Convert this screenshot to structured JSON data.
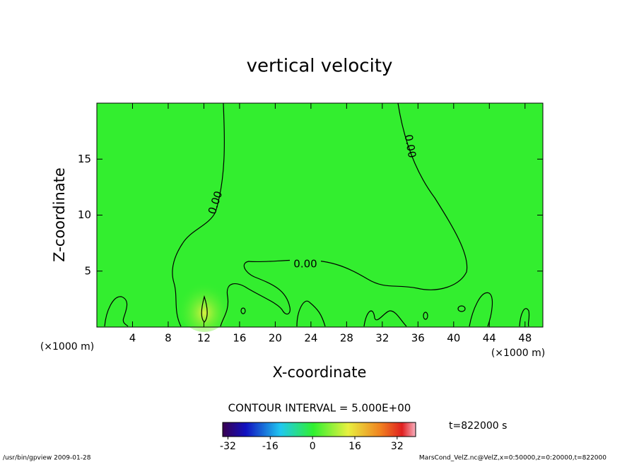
{
  "chart_data": {
    "type": "contour",
    "title": "vertical velocity",
    "x_label": "X-coordinate",
    "y_label": "Z-coordinate",
    "x_unit": "(×1000 m)",
    "xlim": [
      0,
      50
    ],
    "xticks": [
      4,
      8,
      12,
      16,
      20,
      24,
      28,
      32,
      36,
      40,
      44,
      48
    ],
    "ylim": [
      0,
      20
    ],
    "yticks": [
      5,
      10,
      15
    ],
    "contour_level": {
      "value": 0,
      "label": "0.00"
    },
    "contour_interval": "CONTOUR INTERVAL = 5.000E+00",
    "time_label": "t=822000 s",
    "colorbar": {
      "lim": [
        -34,
        39
      ],
      "ticks": [
        -32,
        -16,
        0,
        16,
        32
      ]
    },
    "footer_left": "/usr/bin/gpview   2009-01-28",
    "footer_right": "MarsCond_VelZ.nc@VelZ,x=0:50000,z=0:20000,t=822000"
  }
}
